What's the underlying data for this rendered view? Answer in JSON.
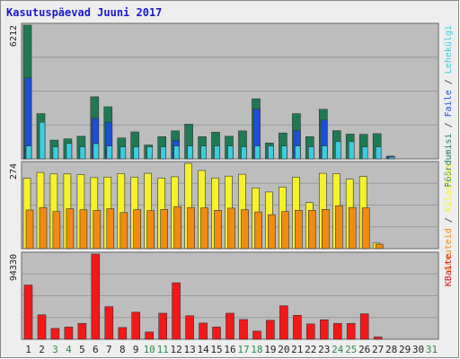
{
  "chart_data": {
    "type": "bar",
    "title": "Kasutuspäevad Juuni 2017",
    "categories": [
      "1",
      "2",
      "3",
      "4",
      "5",
      "6",
      "7",
      "8",
      "9",
      "10",
      "11",
      "12",
      "13",
      "14",
      "15",
      "16",
      "17",
      "18",
      "19",
      "20",
      "21",
      "22",
      "23",
      "24",
      "25",
      "26",
      "27",
      "28",
      "29",
      "30",
      "31"
    ],
    "weekend_days": [
      "3",
      "4",
      "10",
      "11",
      "17",
      "18",
      "24",
      "25",
      "31"
    ],
    "panels": [
      {
        "id": "top",
        "max_label": "6212",
        "ymax": 6212,
        "axis_label_parts": [
          {
            "text": "Pöördumisi",
            "color": "#1e7a52"
          },
          {
            "text": " / ",
            "color": "#333333"
          },
          {
            "text": "Faile",
            "color": "#1c4fd6"
          },
          {
            "text": " / ",
            "color": "#333333"
          },
          {
            "text": "Lehekülgi",
            "color": "#3ccde0"
          }
        ],
        "series": [
          {
            "name": "Pöördumisi",
            "color": "#1e7a52",
            "values": [
              6212,
              2100,
              870,
              930,
              1050,
              2880,
              2420,
              970,
              1250,
              640,
              1030,
              1300,
              1610,
              1030,
              1240,
              1050,
              1300,
              2790,
              740,
              1200,
              2100,
              1030,
              2300,
              1310,
              1150,
              1140,
              1170,
              120,
              0,
              0,
              0
            ]
          },
          {
            "name": "Faile",
            "color": "#1c4fd6",
            "values": [
              3770,
              0,
              0,
              0,
              0,
              1880,
              1700,
              0,
              0,
              0,
              0,
              860,
              0,
              0,
              0,
              0,
              0,
              2320,
              0,
              0,
              1310,
              0,
              1800,
              0,
              0,
              0,
              0,
              120,
              0,
              0,
              0
            ]
          },
          {
            "name": "Lehekülgi",
            "color": "#3ccde0",
            "values": [
              600,
              1700,
              560,
              720,
              560,
              710,
              600,
              560,
              560,
              560,
              560,
              600,
              600,
              600,
              600,
              600,
              560,
              600,
              600,
              600,
              600,
              560,
              600,
              800,
              800,
              560,
              560,
              60,
              0,
              0,
              0
            ]
          }
        ]
      },
      {
        "id": "mid",
        "max_label": "274",
        "ymax": 274,
        "axis_label_parts": [
          {
            "text": "Arvuteid",
            "color": "#f08c10"
          },
          {
            "text": " / ",
            "color": "#333333"
          },
          {
            "text": "Külastusi",
            "color": "#f6f22a"
          }
        ],
        "series": [
          {
            "name": "Külastusi",
            "color": "#f6f22a",
            "values": [
              226,
              245,
              240,
              240,
              238,
              228,
              230,
              241,
              230,
              242,
              226,
              231,
              274,
              251,
              227,
              233,
              239,
              195,
              182,
              198,
              230,
              148,
              242,
              241,
              223,
              232,
              18,
              0,
              0,
              0,
              0
            ]
          },
          {
            "name": "Arvuteid",
            "color": "#f08c10",
            "values": [
              124,
              132,
              119,
              128,
              125,
              123,
              128,
              116,
              125,
              122,
              126,
              135,
              132,
              131,
              123,
              130,
              125,
              118,
              109,
              119,
              123,
              123,
              126,
              138,
              132,
              131,
              14,
              0,
              0,
              0,
              0
            ]
          }
        ]
      },
      {
        "id": "bot",
        "max_label": "94330",
        "ymax": 94330,
        "axis_label_parts": [
          {
            "text": "KBaite",
            "color": "#e01010"
          }
        ],
        "series": [
          {
            "name": "KBaite",
            "color": "#f41818",
            "values": [
              60000,
              27000,
              12000,
              13500,
              17500,
              94330,
              36000,
              13000,
              30000,
              8000,
              28800,
              62500,
              26000,
              18000,
              13500,
              28800,
              21800,
              9000,
              21000,
              37000,
              26500,
              17000,
              21500,
              17500,
              17500,
              28200,
              2500,
              0,
              0,
              0,
              0
            ]
          }
        ]
      }
    ],
    "colors": {
      "background": "#bdbdbd",
      "grid": "#999999",
      "day_label": "#222222",
      "weekend_label": "#2a8a4a",
      "title": "#1a1acc",
      "max_label": "#222222"
    }
  }
}
